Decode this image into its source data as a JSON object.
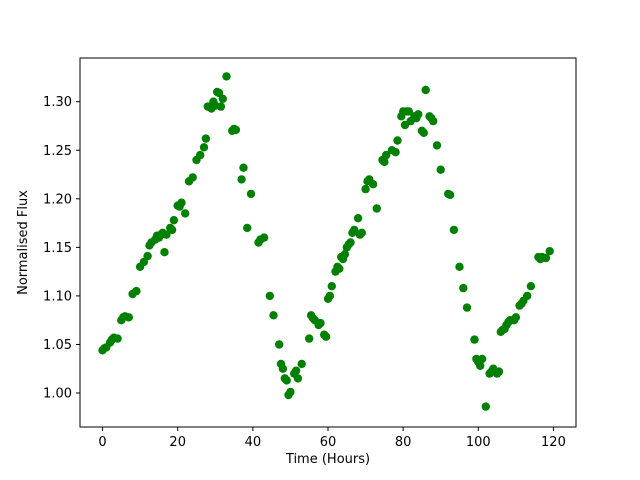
{
  "figure": {
    "background": "#ffffff",
    "spine_color": "#000000"
  },
  "chart_data": {
    "type": "scatter",
    "title": "",
    "xlabel": "Time (Hours)",
    "ylabel": "Normalised Flux",
    "xlim": [
      -6,
      126
    ],
    "ylim": [
      0.965,
      1.345
    ],
    "xticks": [
      0,
      20,
      40,
      60,
      80,
      100,
      120
    ],
    "yticks": [
      1.0,
      1.05,
      1.1,
      1.15,
      1.2,
      1.25,
      1.3
    ],
    "grid": false,
    "legend": null,
    "marker_color": "#008000",
    "marker_radius_px": 4.2,
    "x": [
      0,
      0.5,
      1,
      2,
      2.5,
      3,
      4,
      5,
      5.5,
      6,
      7,
      8,
      9,
      10,
      11,
      12,
      12.5,
      13,
      14,
      14.5,
      15,
      15.5,
      16,
      16.5,
      17,
      18,
      18.5,
      19,
      20,
      20.5,
      21,
      22,
      23,
      24,
      25,
      26,
      27,
      27.5,
      28,
      29,
      29.5,
      30,
      30.5,
      31,
      31.5,
      32,
      33,
      34.5,
      35,
      35.5,
      37,
      37.5,
      38.5,
      39.5,
      41.5,
      42,
      43,
      44.5,
      45.5,
      47,
      47.5,
      48,
      48.5,
      49,
      49.5,
      50,
      51,
      51.5,
      52,
      53,
      55,
      55.5,
      56,
      56.5,
      57.5,
      58,
      59,
      59.5,
      60,
      60.5,
      61,
      62,
      62.5,
      63,
      63.5,
      64,
      64.5,
      65,
      65.5,
      66,
      66.5,
      67,
      68,
      68.5,
      69,
      70,
      70.5,
      71,
      72,
      73,
      74.5,
      75,
      75.5,
      77,
      78,
      78.5,
      79.5,
      80,
      80.5,
      81,
      81.5,
      82,
      83,
      83.5,
      84,
      85,
      85.5,
      86,
      87,
      87.5,
      88,
      89,
      90,
      92,
      92.5,
      93.5,
      95,
      96,
      97,
      99,
      99.5,
      100,
      100.5,
      101,
      102,
      103,
      103.5,
      104,
      105,
      105.5,
      106,
      106.5,
      107,
      107.5,
      108,
      108.5,
      109.5,
      110,
      111,
      111.5,
      112,
      113,
      114,
      116,
      116.5,
      117,
      118,
      119
    ],
    "y": [
      1.044,
      1.046,
      1.047,
      1.052,
      1.055,
      1.057,
      1.056,
      1.075,
      1.078,
      1.079,
      1.078,
      1.102,
      1.105,
      1.13,
      1.135,
      1.141,
      1.152,
      1.155,
      1.158,
      1.162,
      1.16,
      1.163,
      1.165,
      1.145,
      1.163,
      1.17,
      1.168,
      1.178,
      1.193,
      1.192,
      1.196,
      1.185,
      1.218,
      1.222,
      1.24,
      1.245,
      1.253,
      1.262,
      1.295,
      1.293,
      1.3,
      1.296,
      1.31,
      1.309,
      1.295,
      1.303,
      1.326,
      1.27,
      1.272,
      1.271,
      1.22,
      1.232,
      1.17,
      1.205,
      1.155,
      1.158,
      1.16,
      1.1,
      1.08,
      1.05,
      1.03,
      1.025,
      1.015,
      1.013,
      0.998,
      1.001,
      1.02,
      1.023,
      1.015,
      1.03,
      1.056,
      1.08,
      1.077,
      1.075,
      1.07,
      1.072,
      1.06,
      1.058,
      1.097,
      1.1,
      1.11,
      1.125,
      1.13,
      1.128,
      1.14,
      1.138,
      1.143,
      1.15,
      1.153,
      1.155,
      1.165,
      1.168,
      1.18,
      1.163,
      1.165,
      1.21,
      1.218,
      1.22,
      1.215,
      1.19,
      1.24,
      1.238,
      1.245,
      1.25,
      1.248,
      1.26,
      1.285,
      1.29,
      1.276,
      1.29,
      1.29,
      1.28,
      1.285,
      1.283,
      1.287,
      1.27,
      1.268,
      1.312,
      1.285,
      1.283,
      1.28,
      1.255,
      1.23,
      1.205,
      1.204,
      1.168,
      1.13,
      1.108,
      1.088,
      1.055,
      1.035,
      1.032,
      1.028,
      1.035,
      0.986,
      1.02,
      1.022,
      1.025,
      1.02,
      1.022,
      1.063,
      1.065,
      1.066,
      1.07,
      1.073,
      1.075,
      1.075,
      1.078,
      1.09,
      1.092,
      1.095,
      1.1,
      1.11,
      1.14,
      1.138,
      1.14,
      1.139,
      1.146
    ]
  }
}
